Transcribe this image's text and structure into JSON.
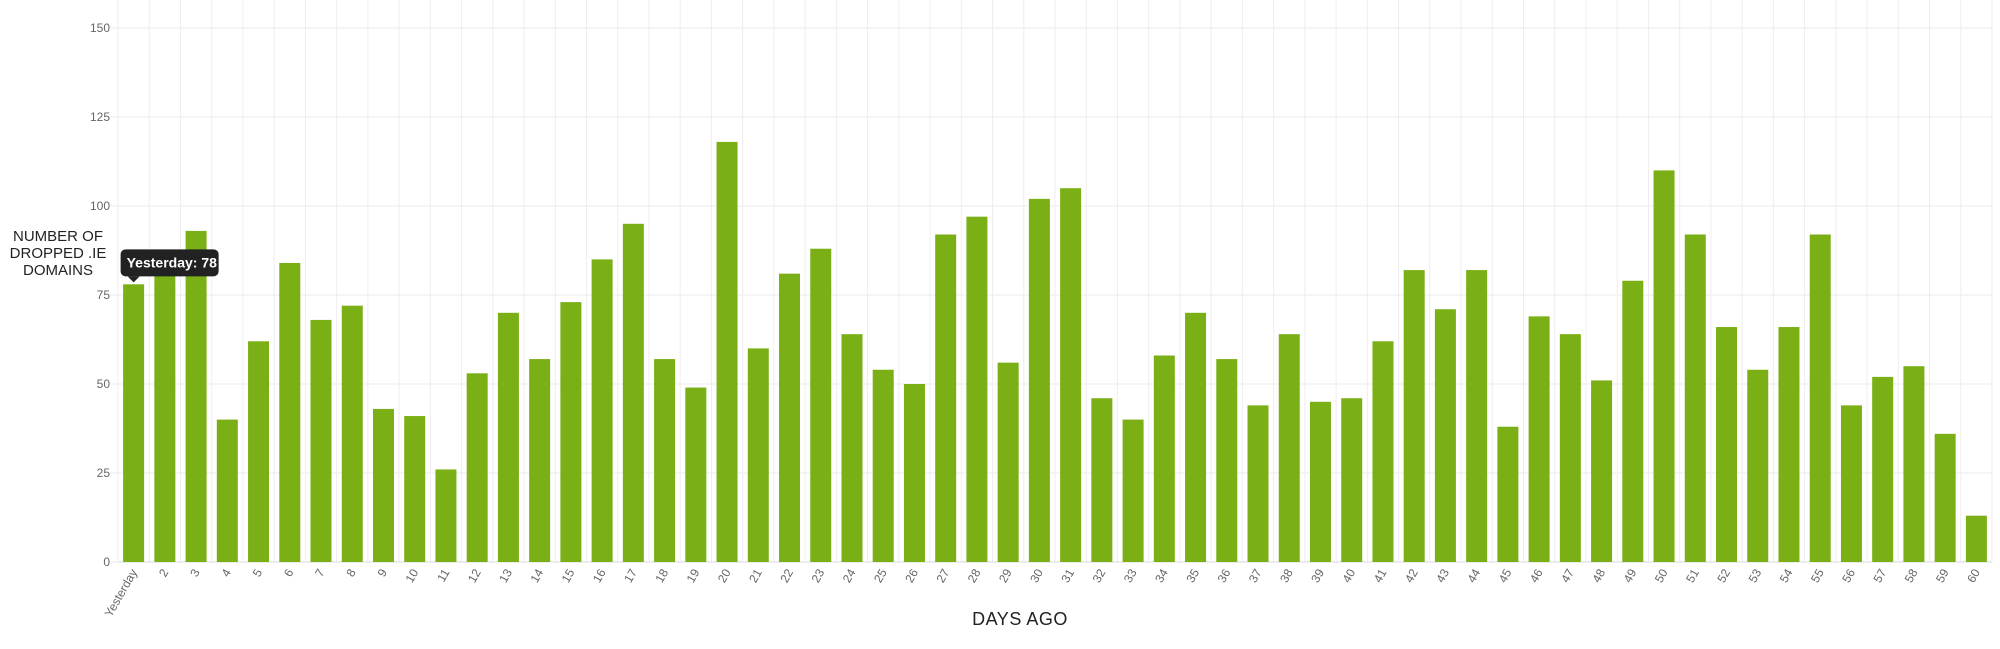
{
  "chart_data": {
    "type": "bar",
    "ylabel": "NUMBER OF\nDROPPED .IE\nDOMAINS",
    "xlabel": "DAYS AGO",
    "ylim": [
      0,
      150
    ],
    "yticks": [
      0,
      25,
      50,
      75,
      100,
      125,
      150
    ],
    "grid": true,
    "bar_color": "#7aaf16",
    "categories": [
      "Yesterday",
      "2",
      "3",
      "4",
      "5",
      "6",
      "7",
      "8",
      "9",
      "10",
      "11",
      "12",
      "13",
      "14",
      "15",
      "16",
      "17",
      "18",
      "19",
      "20",
      "21",
      "22",
      "23",
      "24",
      "25",
      "26",
      "27",
      "28",
      "29",
      "30",
      "31",
      "32",
      "33",
      "34",
      "35",
      "36",
      "37",
      "38",
      "39",
      "40",
      "41",
      "42",
      "43",
      "44",
      "45",
      "46",
      "47",
      "48",
      "49",
      "50",
      "51",
      "52",
      "53",
      "54",
      "55",
      "56",
      "57",
      "58",
      "59",
      "60"
    ],
    "values": [
      78,
      84,
      93,
      40,
      62,
      84,
      68,
      72,
      43,
      41,
      26,
      53,
      70,
      57,
      73,
      85,
      95,
      57,
      49,
      118,
      60,
      81,
      88,
      64,
      54,
      50,
      92,
      97,
      56,
      102,
      105,
      46,
      40,
      58,
      70,
      57,
      44,
      64,
      45,
      46,
      62,
      82,
      71,
      82,
      38,
      69,
      64,
      51,
      79,
      110,
      92,
      66,
      54,
      66,
      92,
      44,
      52,
      55,
      36,
      13
    ],
    "tooltip": {
      "index": 0,
      "text": "Yesterday: 78"
    }
  }
}
